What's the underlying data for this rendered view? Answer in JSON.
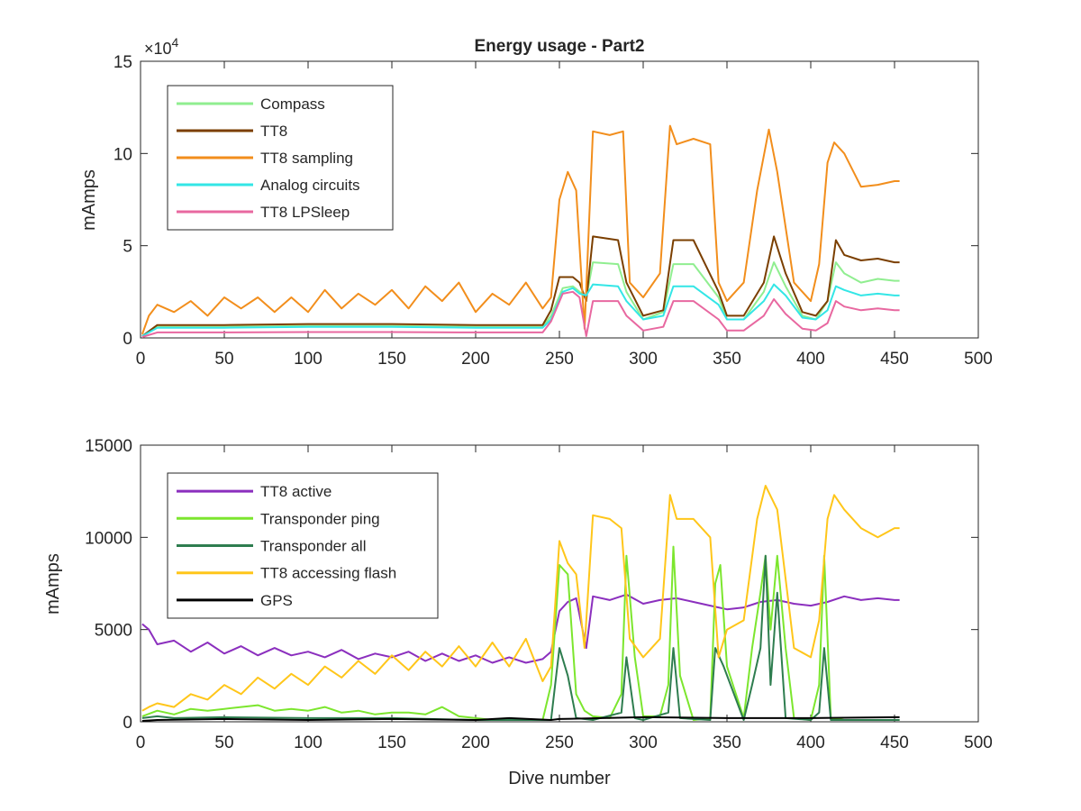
{
  "chart_data": [
    {
      "type": "line",
      "title": "Energy usage - Part2",
      "xlabel": "",
      "ylabel": "mAmps",
      "y_exponent_label": "×10",
      "y_exponent_power": "4",
      "xlim": [
        0,
        500
      ],
      "ylim": [
        0,
        150000
      ],
      "xticks": [
        "0",
        "50",
        "100",
        "150",
        "200",
        "250",
        "300",
        "350",
        "400",
        "450",
        "500"
      ],
      "yticks": [
        "0",
        "5",
        "10",
        "15"
      ],
      "ytick_values": [
        0,
        50000,
        100000,
        150000
      ],
      "grid": false,
      "legend_position": "top-left",
      "series": [
        {
          "name": "Compass",
          "color": "#90EE90",
          "x": [
            1,
            10,
            50,
            100,
            150,
            200,
            240,
            245,
            252,
            258,
            262,
            266,
            270,
            285,
            290,
            300,
            312,
            318,
            330,
            345,
            350,
            360,
            372,
            378,
            385,
            395,
            403,
            410,
            415,
            420,
            430,
            440,
            450,
            453
          ],
          "values": [
            1000,
            6000,
            6000,
            6500,
            6500,
            6000,
            6000,
            12000,
            27000,
            28000,
            25000,
            22000,
            41000,
            40000,
            25000,
            10000,
            14000,
            40000,
            40000,
            22000,
            10000,
            10000,
            25000,
            41000,
            28000,
            12000,
            10000,
            20000,
            41000,
            35000,
            30000,
            32000,
            31000,
            31000
          ]
        },
        {
          "name": "TT8",
          "color": "#7B3F00",
          "x": [
            1,
            10,
            50,
            100,
            150,
            200,
            240,
            245,
            250,
            258,
            262,
            266,
            270,
            285,
            290,
            300,
            312,
            318,
            330,
            345,
            350,
            360,
            372,
            378,
            385,
            395,
            403,
            410,
            415,
            420,
            430,
            440,
            450,
            453
          ],
          "values": [
            1000,
            7000,
            7000,
            7500,
            7500,
            7000,
            7000,
            15000,
            33000,
            33000,
            30000,
            20000,
            55000,
            53000,
            30000,
            12000,
            15000,
            53000,
            53000,
            25000,
            12000,
            12000,
            30000,
            55000,
            35000,
            14000,
            12000,
            20000,
            53000,
            45000,
            42000,
            43000,
            41000,
            41000
          ]
        },
        {
          "name": "TT8 sampling",
          "color": "#F28E1C",
          "x": [
            1,
            5,
            10,
            20,
            30,
            40,
            50,
            60,
            70,
            80,
            90,
            100,
            110,
            120,
            130,
            140,
            150,
            160,
            170,
            180,
            190,
            200,
            210,
            220,
            230,
            240,
            245,
            250,
            255,
            260,
            265,
            270,
            280,
            288,
            292,
            300,
            310,
            316,
            320,
            330,
            340,
            345,
            350,
            360,
            368,
            375,
            380,
            390,
            400,
            405,
            410,
            414,
            420,
            430,
            440,
            450,
            453
          ],
          "values": [
            2000,
            12000,
            18000,
            14000,
            20000,
            12000,
            22000,
            16000,
            22000,
            14000,
            22000,
            14000,
            26000,
            16000,
            24000,
            18000,
            26000,
            16000,
            28000,
            20000,
            30000,
            14000,
            24000,
            18000,
            30000,
            16000,
            22000,
            75000,
            90000,
            80000,
            5000,
            112000,
            110000,
            112000,
            30000,
            22000,
            35000,
            115000,
            105000,
            108000,
            105000,
            30000,
            20000,
            30000,
            80000,
            113000,
            90000,
            30000,
            20000,
            40000,
            95000,
            106000,
            100000,
            82000,
            83000,
            85000,
            85000
          ]
        },
        {
          "name": "Analog circuits",
          "color": "#33E6E6",
          "x": [
            1,
            10,
            50,
            100,
            150,
            200,
            240,
            245,
            252,
            258,
            262,
            266,
            270,
            285,
            290,
            300,
            312,
            318,
            330,
            345,
            350,
            360,
            372,
            378,
            385,
            395,
            403,
            410,
            415,
            420,
            430,
            440,
            450,
            453
          ],
          "values": [
            1000,
            5500,
            5500,
            6000,
            6000,
            5500,
            5500,
            10000,
            25000,
            27000,
            24000,
            23000,
            29000,
            28000,
            20000,
            10000,
            12000,
            28000,
            28000,
            18000,
            10000,
            10000,
            20000,
            29000,
            23000,
            11000,
            10000,
            15000,
            28000,
            26000,
            23000,
            24000,
            23000,
            23000
          ]
        },
        {
          "name": "TT8 LPSleep",
          "color": "#E868A0",
          "x": [
            1,
            10,
            50,
            100,
            150,
            200,
            240,
            245,
            252,
            258,
            262,
            266,
            270,
            285,
            290,
            300,
            312,
            318,
            330,
            345,
            350,
            360,
            372,
            378,
            385,
            395,
            403,
            410,
            415,
            420,
            430,
            440,
            450,
            453
          ],
          "values": [
            500,
            3000,
            3000,
            3200,
            3200,
            3000,
            3000,
            9000,
            24000,
            25000,
            22000,
            1000,
            20000,
            20000,
            12000,
            4000,
            6000,
            20000,
            20000,
            10000,
            4000,
            4000,
            12000,
            21000,
            13000,
            5000,
            4000,
            8000,
            20000,
            17000,
            15000,
            16000,
            15000,
            15000
          ]
        }
      ]
    },
    {
      "type": "line",
      "title": "",
      "xlabel": "Dive number",
      "ylabel": "mAmps",
      "xlim": [
        0,
        500
      ],
      "ylim": [
        0,
        15000
      ],
      "xticks": [
        "0",
        "50",
        "100",
        "150",
        "200",
        "250",
        "300",
        "350",
        "400",
        "450",
        "500"
      ],
      "yticks": [
        "0",
        "5000",
        "10000",
        "15000"
      ],
      "ytick_values": [
        0,
        5000,
        10000,
        15000
      ],
      "grid": false,
      "legend_position": "top-left",
      "series": [
        {
          "name": "TT8 active",
          "color": "#8B2FBE",
          "x": [
            1,
            5,
            10,
            20,
            30,
            40,
            50,
            60,
            70,
            80,
            90,
            100,
            110,
            120,
            130,
            140,
            150,
            160,
            170,
            180,
            190,
            200,
            210,
            220,
            230,
            240,
            245,
            250,
            255,
            260,
            266,
            270,
            280,
            290,
            300,
            310,
            320,
            330,
            340,
            350,
            360,
            370,
            380,
            390,
            400,
            410,
            420,
            430,
            440,
            450,
            453
          ],
          "values": [
            5300,
            5000,
            4200,
            4400,
            3800,
            4300,
            3700,
            4100,
            3600,
            4000,
            3600,
            3800,
            3500,
            3900,
            3400,
            3700,
            3500,
            3800,
            3300,
            3700,
            3300,
            3600,
            3200,
            3500,
            3200,
            3400,
            3800,
            6000,
            6500,
            6700,
            4000,
            6800,
            6600,
            6900,
            6400,
            6600,
            6700,
            6500,
            6300,
            6100,
            6200,
            6500,
            6600,
            6400,
            6300,
            6500,
            6800,
            6600,
            6700,
            6600,
            6600
          ]
        },
        {
          "name": "Transponder ping",
          "color": "#7CE62E",
          "x": [
            1,
            10,
            20,
            30,
            40,
            50,
            60,
            70,
            80,
            90,
            100,
            110,
            120,
            130,
            140,
            150,
            160,
            170,
            180,
            190,
            200,
            210,
            220,
            230,
            240,
            245,
            250,
            255,
            260,
            265,
            270,
            280,
            287,
            290,
            295,
            300,
            310,
            315,
            318,
            322,
            330,
            340,
            343,
            346,
            350,
            360,
            365,
            370,
            373,
            376,
            380,
            385,
            390,
            400,
            405,
            408,
            412,
            420,
            440,
            453
          ],
          "values": [
            300,
            600,
            400,
            700,
            600,
            700,
            800,
            900,
            600,
            700,
            600,
            800,
            500,
            600,
            400,
            500,
            500,
            400,
            800,
            300,
            200,
            100,
            100,
            100,
            100,
            2000,
            8500,
            8000,
            1500,
            600,
            300,
            200,
            1500,
            9000,
            3500,
            300,
            300,
            2000,
            9500,
            2500,
            100,
            200,
            7500,
            8500,
            3000,
            200,
            4000,
            7000,
            9000,
            5000,
            9000,
            4000,
            200,
            100,
            2000,
            9000,
            200,
            100,
            100,
            100
          ]
        },
        {
          "name": "Transponder all",
          "color": "#2E7D4F",
          "x": [
            1,
            10,
            20,
            50,
            100,
            150,
            200,
            245,
            250,
            255,
            260,
            270,
            287,
            290,
            295,
            300,
            315,
            318,
            322,
            340,
            343,
            348,
            360,
            365,
            370,
            373,
            376,
            380,
            385,
            400,
            405,
            408,
            412,
            453
          ],
          "values": [
            200,
            300,
            200,
            250,
            200,
            200,
            100,
            100,
            4000,
            2500,
            200,
            100,
            500,
            3500,
            200,
            100,
            500,
            4000,
            200,
            100,
            4000,
            3000,
            100,
            2000,
            4000,
            9000,
            2000,
            7000,
            200,
            100,
            500,
            4000,
            100,
            100
          ]
        },
        {
          "name": "TT8 accessing flash",
          "color": "#FFC61A",
          "x": [
            1,
            5,
            10,
            20,
            30,
            40,
            50,
            60,
            70,
            80,
            90,
            100,
            110,
            120,
            130,
            140,
            150,
            160,
            170,
            180,
            190,
            200,
            210,
            220,
            230,
            240,
            245,
            250,
            255,
            260,
            265,
            270,
            280,
            287,
            292,
            300,
            310,
            316,
            320,
            330,
            340,
            345,
            350,
            360,
            368,
            373,
            380,
            390,
            400,
            405,
            410,
            414,
            420,
            430,
            440,
            450,
            453
          ],
          "values": [
            600,
            800,
            1000,
            800,
            1500,
            1200,
            2000,
            1500,
            2400,
            1800,
            2600,
            2000,
            3000,
            2400,
            3300,
            2600,
            3600,
            2800,
            3800,
            3000,
            4100,
            3000,
            4300,
            3000,
            4500,
            2200,
            3000,
            9800,
            8600,
            8000,
            4000,
            11200,
            11000,
            10500,
            4500,
            3500,
            4500,
            12300,
            11000,
            11000,
            10000,
            3500,
            5000,
            5500,
            11000,
            12800,
            11500,
            4000,
            3500,
            5500,
            11000,
            12300,
            11500,
            10500,
            10000,
            10500,
            10500
          ]
        },
        {
          "name": "GPS",
          "color": "#000000",
          "x": [
            1,
            10,
            50,
            100,
            150,
            200,
            220,
            245,
            250,
            300,
            350,
            400,
            453
          ],
          "values": [
            50,
            100,
            150,
            100,
            150,
            100,
            200,
            100,
            150,
            250,
            200,
            200,
            250
          ]
        }
      ]
    }
  ]
}
